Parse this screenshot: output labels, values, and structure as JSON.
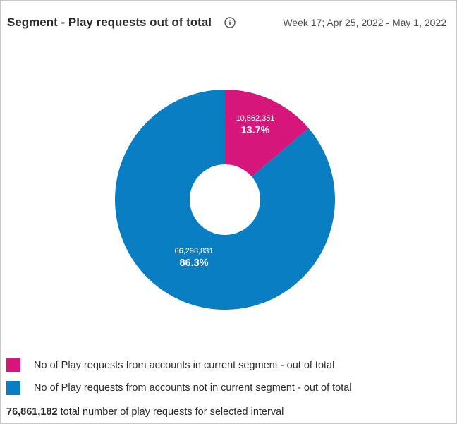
{
  "header": {
    "title": "Segment - Play requests out of total",
    "date_range": "Week 17; Apr 25, 2022 - May 1, 2022",
    "info_icon": "info-icon"
  },
  "chart_data": {
    "type": "pie",
    "style": "donut",
    "title": "Segment - Play requests out of total",
    "subtitle": "Week 17; Apr 25, 2022 - May 1, 2022",
    "slices": [
      {
        "name": "No of Play requests from accounts in current segment - out of total",
        "value": 10562351,
        "value_label": "10,562,351",
        "percent": 13.7,
        "percent_label": "13.7%",
        "color": "#d6167b"
      },
      {
        "name": "No of Play requests from accounts not in current segment - out of total",
        "value": 66298831,
        "value_label": "66,298,831",
        "percent": 86.3,
        "percent_label": "86.3%",
        "color": "#0a7ec2"
      }
    ],
    "legend_position": "bottom-left"
  },
  "footer": {
    "total": "76,861,182",
    "text": "total number of play requests for selected interval"
  }
}
